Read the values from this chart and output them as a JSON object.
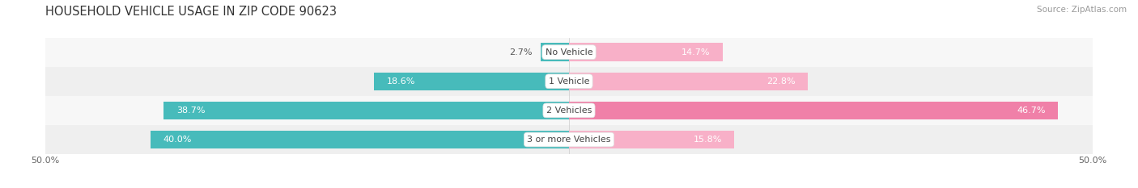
{
  "title": "HOUSEHOLD VEHICLE USAGE IN ZIP CODE 90623",
  "source": "Source: ZipAtlas.com",
  "categories": [
    "No Vehicle",
    "1 Vehicle",
    "2 Vehicles",
    "3 or more Vehicles"
  ],
  "owner_values": [
    2.7,
    18.6,
    38.7,
    40.0
  ],
  "renter_values": [
    14.7,
    22.8,
    46.7,
    15.8
  ],
  "owner_color": "#47BBBB",
  "renter_color": "#F080A8",
  "renter_color_light": "#F8B0C8",
  "title_fontsize": 10.5,
  "source_fontsize": 7.5,
  "value_fontsize": 8,
  "cat_fontsize": 8,
  "bar_height": 0.62,
  "xlim": [
    -50,
    50
  ],
  "row_bg_odd": "#F7F7F7",
  "row_bg_even": "#EFEFEF",
  "background_color": "#FFFFFF",
  "inside_threshold": 10,
  "white_text": "#FFFFFF",
  "dark_text": "#555555"
}
